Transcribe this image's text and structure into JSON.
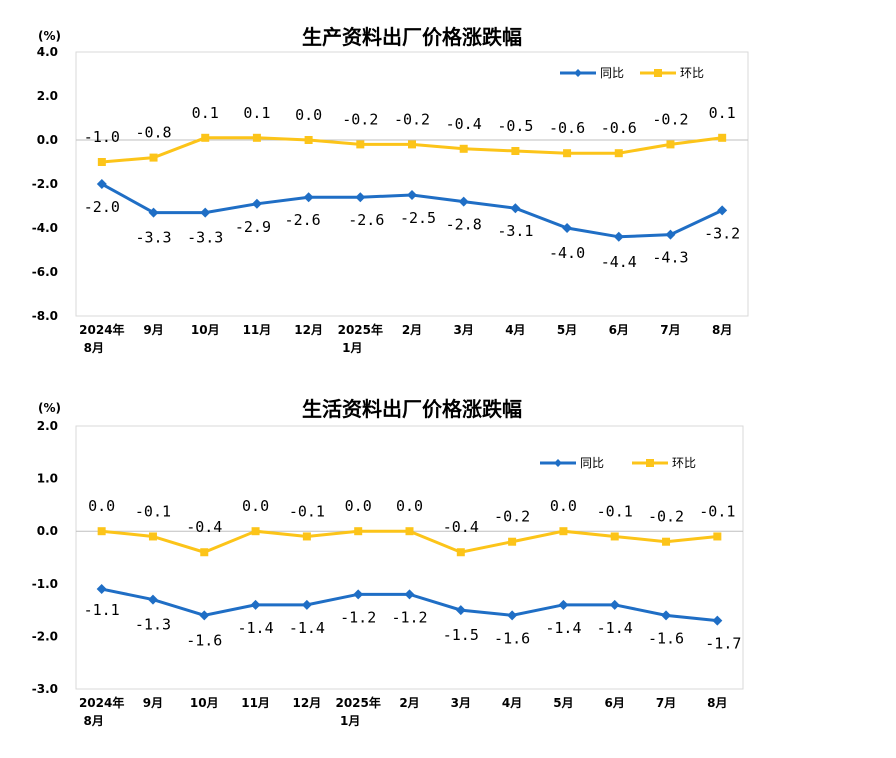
{
  "chart_data": [
    {
      "type": "line",
      "title": "生产资料出厂价格涨跌幅",
      "unit_label": "(%)",
      "ylim": [
        -8.0,
        4.0
      ],
      "yticks": [
        "4.0",
        "2.0",
        "0.0",
        "-2.0",
        "-4.0",
        "-6.0",
        "-8.0"
      ],
      "ytick_values": [
        4,
        2,
        0,
        -2,
        -4,
        -6,
        -8
      ],
      "categories": [
        [
          "2024年",
          "8月"
        ],
        [
          "9月"
        ],
        [
          "10月"
        ],
        [
          "11月"
        ],
        [
          "12月"
        ],
        [
          "2025年",
          "1月"
        ],
        [
          "2月"
        ],
        [
          "3月"
        ],
        [
          "4月"
        ],
        [
          "5月"
        ],
        [
          "6月"
        ],
        [
          "7月"
        ],
        [
          "8月"
        ]
      ],
      "legend_position": "top-right",
      "series": [
        {
          "name": "同比",
          "color": "#1f6ec5",
          "marker": "diamond",
          "values": [
            -2.0,
            -3.3,
            -3.3,
            -2.9,
            -2.6,
            -2.6,
            -2.5,
            -2.8,
            -3.1,
            -4.0,
            -4.4,
            -4.3,
            -3.2
          ],
          "labels": [
            "-2.0",
            "-3.3",
            "-3.3",
            "-2.9",
            "-2.6",
            "-2.6",
            "-2.5",
            "-2.8",
            "-3.1",
            "-4.0",
            "-4.4",
            "-4.3",
            "-3.2"
          ]
        },
        {
          "name": "环比",
          "color": "#fcc419",
          "marker": "square",
          "values": [
            -1.0,
            -0.8,
            0.1,
            0.1,
            0.0,
            -0.2,
            -0.2,
            -0.4,
            -0.5,
            -0.6,
            -0.6,
            -0.2,
            0.1
          ],
          "labels": [
            "-1.0",
            "-0.8",
            "0.1",
            "0.1",
            "0.0",
            "-0.2",
            "-0.2",
            "-0.4",
            "-0.5",
            "-0.6",
            "-0.6",
            "-0.2",
            "0.1"
          ]
        }
      ]
    },
    {
      "type": "line",
      "title": "生活资料出厂价格涨跌幅",
      "unit_label": "(%)",
      "ylim": [
        -3.0,
        2.0
      ],
      "yticks": [
        "2.0",
        "1.0",
        "0.0",
        "-1.0",
        "-2.0",
        "-3.0"
      ],
      "ytick_values": [
        2,
        1,
        0,
        -1,
        -2,
        -3
      ],
      "categories": [
        [
          "2024年",
          "8月"
        ],
        [
          "9月"
        ],
        [
          "10月"
        ],
        [
          "11月"
        ],
        [
          "12月"
        ],
        [
          "2025年",
          "1月"
        ],
        [
          "2月"
        ],
        [
          "3月"
        ],
        [
          "4月"
        ],
        [
          "5月"
        ],
        [
          "6月"
        ],
        [
          "7月"
        ],
        [
          "8月"
        ]
      ],
      "legend_position": "top-right",
      "series": [
        {
          "name": "同比",
          "color": "#1f6ec5",
          "marker": "diamond",
          "values": [
            -1.1,
            -1.3,
            -1.6,
            -1.4,
            -1.4,
            -1.2,
            -1.2,
            -1.5,
            -1.6,
            -1.4,
            -1.4,
            -1.6,
            -1.7
          ],
          "labels": [
            "-1.1",
            "-1.3",
            "-1.6",
            "-1.4",
            "-1.4",
            "-1.2",
            "-1.2",
            "-1.5",
            "-1.6",
            "-1.4",
            "-1.4",
            "-1.6",
            "-1.7"
          ]
        },
        {
          "name": "环比",
          "color": "#fcc419",
          "marker": "square",
          "values": [
            0.0,
            -0.1,
            -0.4,
            0.0,
            -0.1,
            0.0,
            0.0,
            -0.4,
            -0.2,
            0.0,
            -0.1,
            -0.2,
            -0.1
          ],
          "labels": [
            "0.0",
            "-0.1",
            "-0.4",
            "0.0",
            "-0.1",
            "0.0",
            "0.0",
            "-0.4",
            "-0.2",
            "0.0",
            "-0.1",
            "-0.2",
            "-0.1"
          ]
        }
      ]
    }
  ]
}
